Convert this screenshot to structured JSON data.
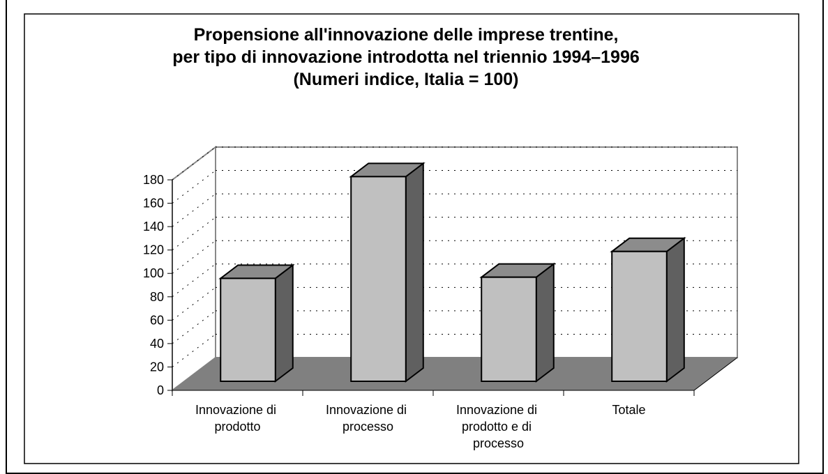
{
  "chart_data": {
    "type": "bar3d",
    "title": [
      "Propensione all'innovazione delle imprese trentine,",
      "per tipo di innovazione introdotta nel triennio 1994–1996",
      "(Numeri indice, Italia = 100)"
    ],
    "categories": [
      "Innovazione di prodotto",
      "Innovazione di processo",
      "Innovazione di prodotto e di processo",
      "Totale"
    ],
    "values": [
      88,
      175,
      89,
      111
    ],
    "color": "#c0c0c0",
    "ylim": [
      0,
      180
    ],
    "yticks": [
      0,
      20,
      40,
      60,
      80,
      100,
      120,
      140,
      160,
      180
    ],
    "grid": true
  }
}
